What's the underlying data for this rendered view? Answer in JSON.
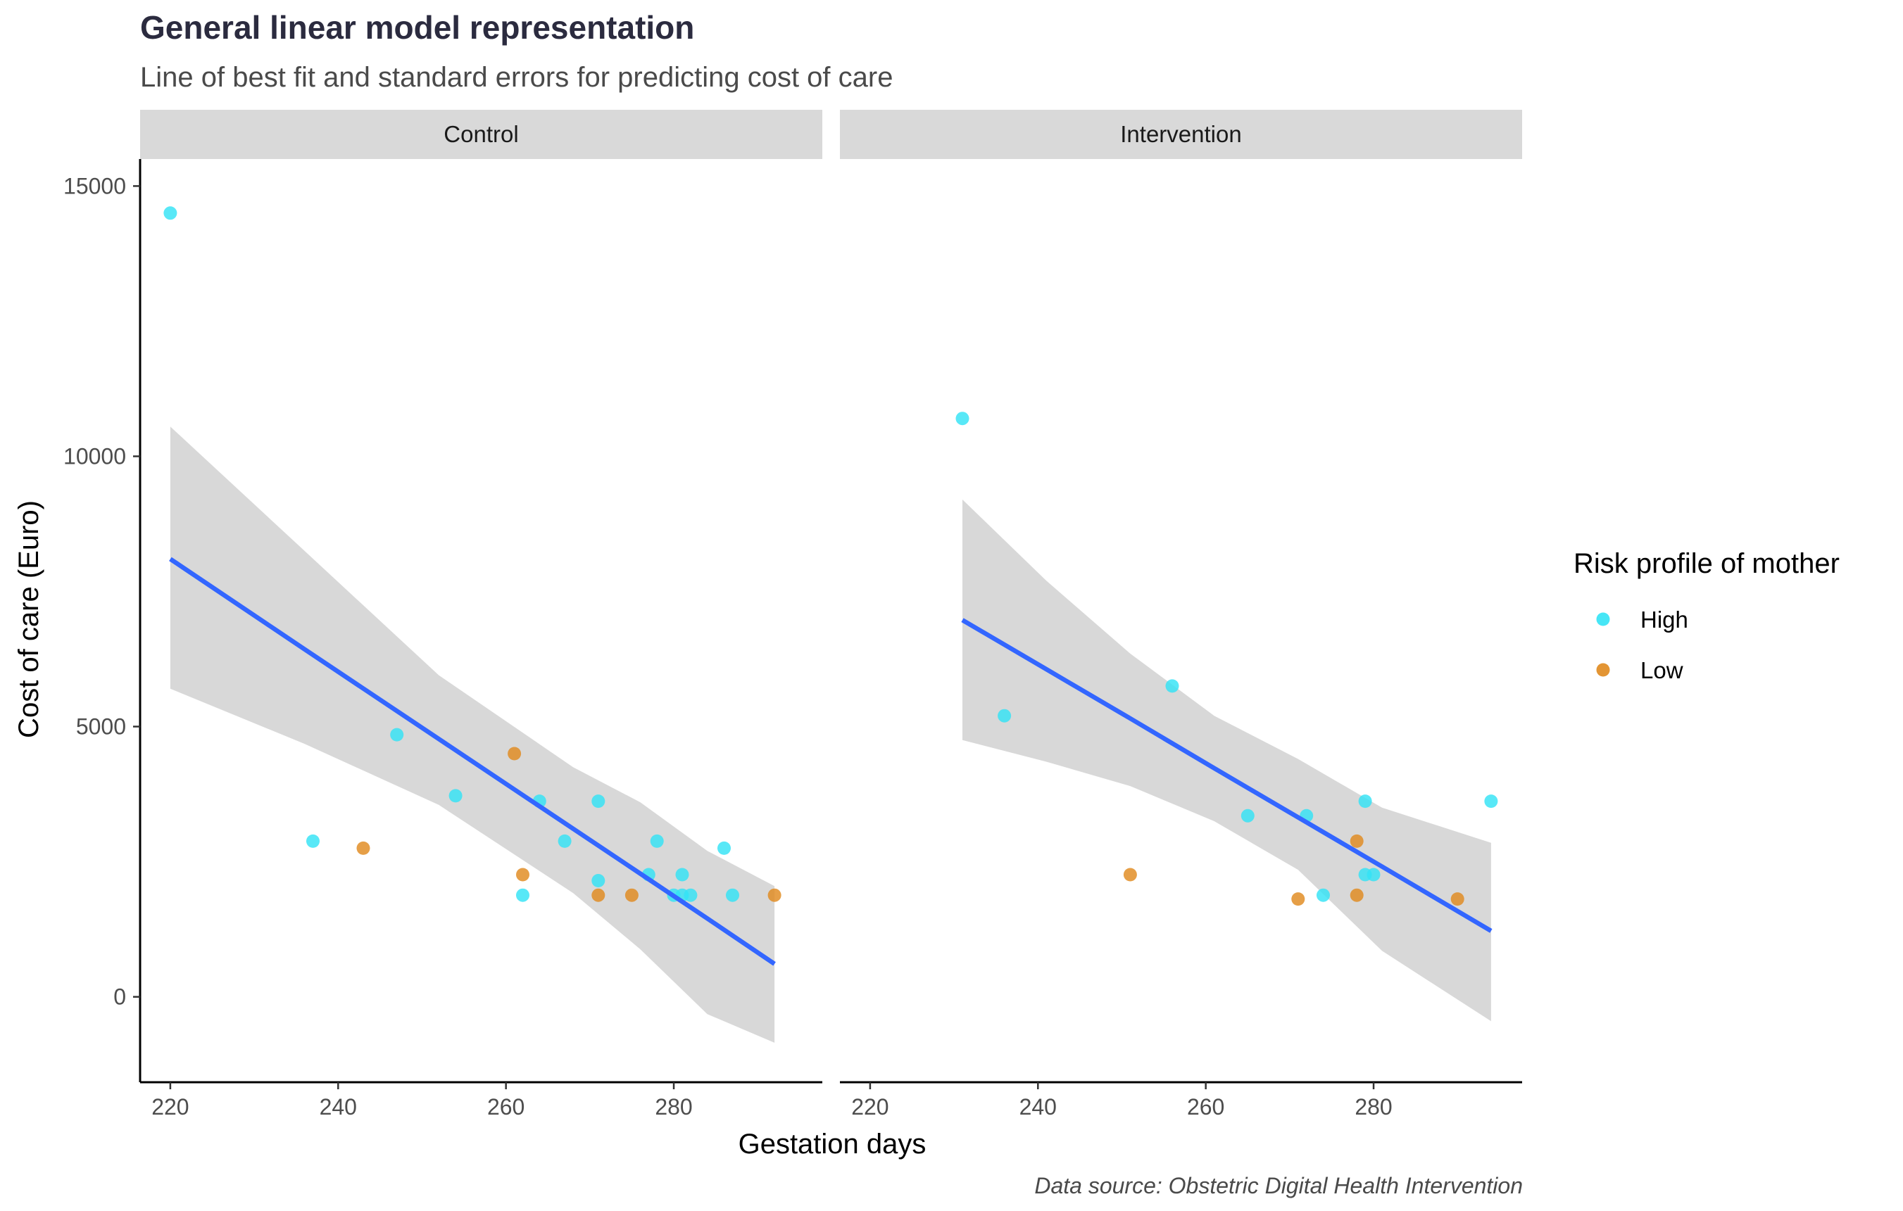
{
  "chart_data": {
    "type": "scatter",
    "title": "General linear model representation",
    "subtitle": "Line of best fit and standard errors for predicting cost of care",
    "xlabel": "Gestation days",
    "ylabel": "Cost of care (Euro)",
    "caption": "Data source: Obstetric Digital Health Intervention",
    "xlim": [
      216.4,
      297.7
    ],
    "ylim": [
      -1580,
      15500
    ],
    "x_ticks": [
      220,
      240,
      260,
      280
    ],
    "y_ticks": [
      0,
      5000,
      10000,
      15000
    ],
    "grid": false,
    "legend": {
      "title": "Risk profile of mother",
      "position": "right",
      "items": [
        {
          "label": "High",
          "color": "#33E3F5"
        },
        {
          "label": "Low",
          "color": "#E08A1E"
        }
      ]
    },
    "colors": {
      "High": "#33E3F5",
      "Low": "#E08A1E",
      "fit_line": "#3366FF",
      "ribbon": "#D6D6D6",
      "strip": "#D9D9D9"
    },
    "panels": [
      {
        "name": "Control",
        "points": [
          {
            "x": 220,
            "y": 14500,
            "group": "High"
          },
          {
            "x": 237,
            "y": 2880,
            "group": "High"
          },
          {
            "x": 243,
            "y": 2750,
            "group": "Low"
          },
          {
            "x": 247,
            "y": 4850,
            "group": "High"
          },
          {
            "x": 254,
            "y": 3720,
            "group": "High"
          },
          {
            "x": 261,
            "y": 4500,
            "group": "Low"
          },
          {
            "x": 262,
            "y": 2260,
            "group": "Low"
          },
          {
            "x": 262,
            "y": 1880,
            "group": "High"
          },
          {
            "x": 264,
            "y": 3620,
            "group": "High"
          },
          {
            "x": 267,
            "y": 2880,
            "group": "High"
          },
          {
            "x": 271,
            "y": 3620,
            "group": "High"
          },
          {
            "x": 271,
            "y": 2150,
            "group": "High"
          },
          {
            "x": 271,
            "y": 1880,
            "group": "Low"
          },
          {
            "x": 275,
            "y": 1880,
            "group": "Low"
          },
          {
            "x": 277,
            "y": 2260,
            "group": "High"
          },
          {
            "x": 278,
            "y": 2880,
            "group": "High"
          },
          {
            "x": 280,
            "y": 1880,
            "group": "High"
          },
          {
            "x": 281,
            "y": 2260,
            "group": "High"
          },
          {
            "x": 281,
            "y": 1880,
            "group": "High"
          },
          {
            "x": 282,
            "y": 1880,
            "group": "High"
          },
          {
            "x": 286,
            "y": 2750,
            "group": "High"
          },
          {
            "x": 287,
            "y": 1880,
            "group": "High"
          },
          {
            "x": 292,
            "y": 1880,
            "group": "Low"
          }
        ],
        "fit": {
          "x": [
            220,
            236,
            252,
            268,
            276,
            284,
            292
          ],
          "y": [
            8100,
            6430,
            4770,
            3110,
            2280,
            1450,
            610
          ],
          "lower": [
            5700,
            4680,
            3550,
            1920,
            880,
            -320,
            -850
          ],
          "upper": [
            10550,
            8250,
            5950,
            4250,
            3600,
            2700,
            2050
          ]
        }
      },
      {
        "name": "Intervention",
        "points": [
          {
            "x": 231,
            "y": 10700,
            "group": "High"
          },
          {
            "x": 236,
            "y": 5200,
            "group": "High"
          },
          {
            "x": 251,
            "y": 2260,
            "group": "Low"
          },
          {
            "x": 256,
            "y": 5750,
            "group": "High"
          },
          {
            "x": 265,
            "y": 3350,
            "group": "High"
          },
          {
            "x": 271,
            "y": 1810,
            "group": "Low"
          },
          {
            "x": 272,
            "y": 3350,
            "group": "High"
          },
          {
            "x": 274,
            "y": 1880,
            "group": "High"
          },
          {
            "x": 278,
            "y": 2880,
            "group": "Low"
          },
          {
            "x": 278,
            "y": 1880,
            "group": "Low"
          },
          {
            "x": 279,
            "y": 3620,
            "group": "High"
          },
          {
            "x": 279,
            "y": 2260,
            "group": "High"
          },
          {
            "x": 280,
            "y": 2260,
            "group": "High"
          },
          {
            "x": 290,
            "y": 1810,
            "group": "Low"
          },
          {
            "x": 294,
            "y": 3620,
            "group": "High"
          }
        ],
        "fit": {
          "x": [
            231,
            241,
            251,
            261,
            271,
            281,
            294
          ],
          "y": [
            6970,
            6060,
            5150,
            4230,
            3320,
            2410,
            1220
          ],
          "lower": [
            4750,
            4350,
            3900,
            3250,
            2350,
            850,
            -450
          ],
          "upper": [
            9200,
            7700,
            6350,
            5200,
            4400,
            3500,
            2850
          ]
        }
      }
    ]
  }
}
